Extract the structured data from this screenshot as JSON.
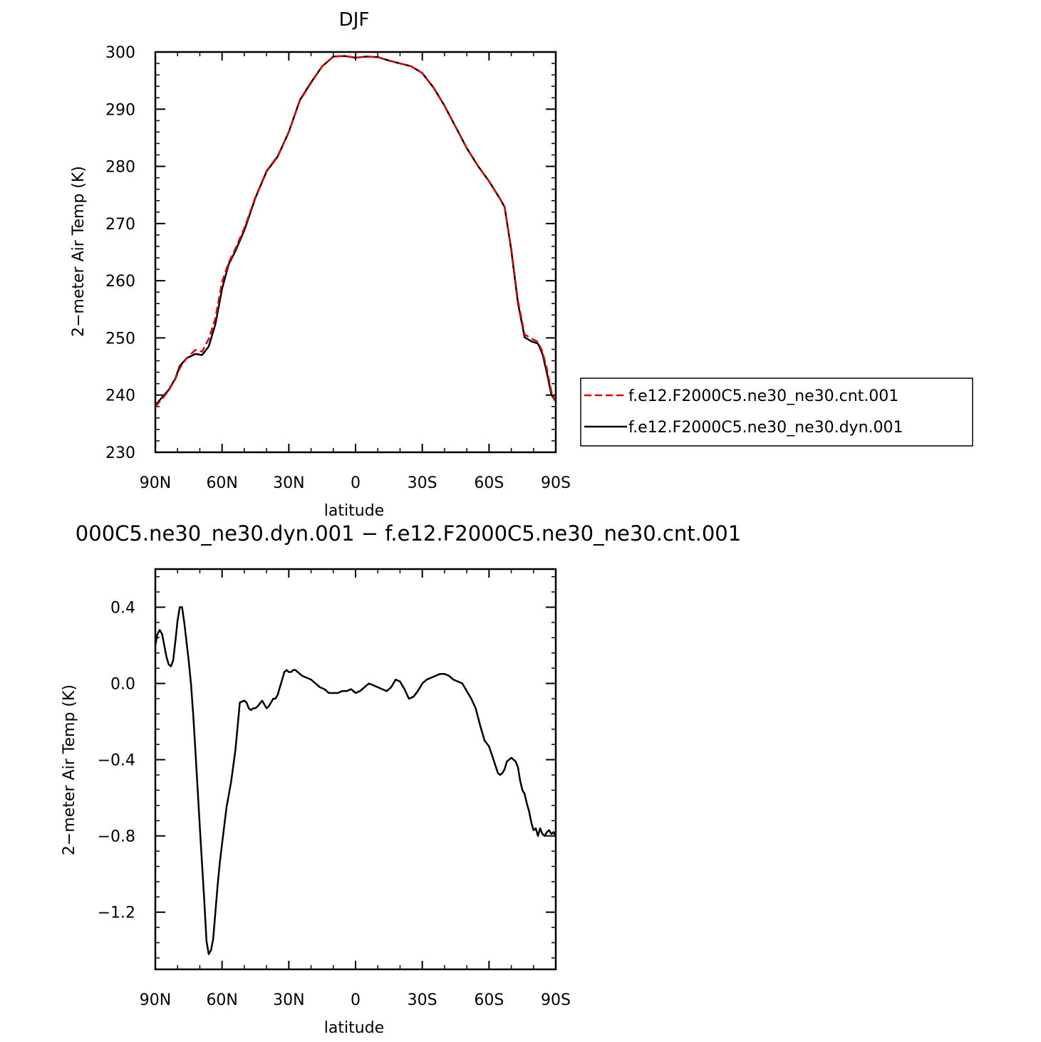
{
  "chart_data": [
    {
      "type": "line",
      "title": "DJF",
      "xlabel": "latitude",
      "ylabel": "2−meter Air Temp (K)",
      "xlim": [
        90,
        -90
      ],
      "ylim": [
        230,
        300
      ],
      "x_ticks": [
        90,
        60,
        30,
        0,
        -30,
        -60,
        -90
      ],
      "x_tick_labels": [
        "90N",
        "60N",
        "30N",
        "0",
        "30S",
        "60S",
        "90S"
      ],
      "y_ticks": [
        230,
        240,
        250,
        260,
        270,
        280,
        290,
        300
      ],
      "y_tick_labels": [
        "230",
        "240",
        "250",
        "260",
        "270",
        "280",
        "290",
        "300"
      ],
      "legend_position": "right",
      "series": [
        {
          "name": "f.e12.F2000C5.ne30_ne30.cnt.001",
          "color": "#e00000",
          "dash": "dashed",
          "x": [
            90,
            87,
            84,
            81,
            79,
            76,
            72,
            69,
            66,
            63,
            60,
            57,
            54,
            50,
            45,
            40,
            35,
            30,
            25,
            20,
            15,
            10,
            5,
            0,
            -5,
            -10,
            -15,
            -20,
            -25,
            -30,
            -35,
            -40,
            -45,
            -50,
            -55,
            -60,
            -65,
            -67,
            -70,
            -73,
            -76,
            -79,
            -82,
            -84,
            -86,
            -88,
            -90
          ],
          "y": [
            238.0,
            239.3,
            240.8,
            242.8,
            244.7,
            246.4,
            247.9,
            247.6,
            249.8,
            253.4,
            259.8,
            263.2,
            265.6,
            269.2,
            274.6,
            279.2,
            281.8,
            286.0,
            291.5,
            294.6,
            297.5,
            299.2,
            299.3,
            299.0,
            299.2,
            299.1,
            298.5,
            298.0,
            297.5,
            296.3,
            293.8,
            290.6,
            286.9,
            283.2,
            280.1,
            277.4,
            274.3,
            272.9,
            265.5,
            256.5,
            250.6,
            249.9,
            249.3,
            247.6,
            244.6,
            240.6,
            238.9
          ]
        },
        {
          "name": "f.e12.F2000C5.ne30_ne30.dyn.001",
          "color": "#000000",
          "dash": "solid",
          "x": [
            90,
            87,
            84,
            81,
            79,
            76,
            72,
            69,
            66,
            63,
            60,
            57,
            54,
            50,
            45,
            40,
            35,
            30,
            25,
            20,
            15,
            10,
            5,
            0,
            -5,
            -10,
            -15,
            -20,
            -25,
            -30,
            -35,
            -40,
            -45,
            -50,
            -55,
            -60,
            -65,
            -67,
            -70,
            -73,
            -76,
            -79,
            -82,
            -84,
            -86,
            -88,
            -90
          ],
          "y": [
            238.2,
            239.6,
            240.9,
            242.9,
            245.1,
            246.4,
            247.2,
            247.0,
            248.5,
            252.4,
            258.6,
            262.9,
            265.2,
            268.8,
            274.5,
            279.1,
            281.7,
            286.0,
            291.6,
            294.7,
            297.5,
            299.2,
            299.3,
            299.0,
            299.2,
            299.1,
            298.5,
            298.0,
            297.5,
            296.3,
            293.8,
            290.6,
            286.9,
            283.2,
            280.1,
            277.4,
            274.3,
            272.9,
            265.3,
            256.1,
            250.1,
            249.4,
            249.0,
            247.2,
            243.9,
            240.1,
            238.9
          ]
        }
      ]
    },
    {
      "type": "line",
      "title": "000C5.ne30_ne30.dyn.001 − f.e12.F2000C5.ne30_ne30.cnt.001",
      "xlabel": "latitude",
      "ylabel": "2−meter Air Temp (K)",
      "xlim": [
        90,
        -90
      ],
      "ylim": [
        -1.5,
        0.6
      ],
      "x_ticks": [
        90,
        60,
        30,
        0,
        -30,
        -60,
        -90
      ],
      "x_tick_labels": [
        "90N",
        "60N",
        "30N",
        "0",
        "30S",
        "60S",
        "90S"
      ],
      "y_ticks": [
        -1.2,
        -0.8,
        -0.4,
        0.0,
        0.4
      ],
      "y_tick_labels": [
        "−1.2",
        "−0.8",
        "−0.4",
        "0.0",
        "0.4"
      ],
      "series": [
        {
          "color": "#000000",
          "dash": "solid",
          "x": [
            90,
            89,
            88,
            87,
            86,
            85,
            84,
            83,
            82,
            81,
            80,
            79,
            78,
            77,
            76,
            75,
            74,
            73,
            72,
            71,
            70,
            69,
            68,
            67,
            66,
            65,
            64,
            63,
            62,
            61,
            60,
            58,
            56,
            54,
            52,
            50,
            49,
            48,
            47,
            46,
            45,
            44,
            42,
            40,
            39,
            38,
            37,
            36,
            35,
            34,
            33,
            32,
            31,
            30,
            29,
            28,
            27,
            26,
            25,
            24,
            22,
            20,
            18,
            16,
            14,
            12,
            10,
            8,
            6,
            4,
            2,
            0,
            -2,
            -4,
            -6,
            -8,
            -10,
            -12,
            -14,
            -16,
            -18,
            -20,
            -22,
            -24,
            -26,
            -28,
            -30,
            -32,
            -34,
            -36,
            -38,
            -40,
            -42,
            -44,
            -46,
            -48,
            -50,
            -52,
            -54,
            -56,
            -58,
            -60,
            -62,
            -64,
            -65,
            -66,
            -67,
            -68,
            -70,
            -71,
            -72,
            -73,
            -74,
            -75,
            -76,
            -77,
            -78,
            -79,
            -80,
            -81,
            -82,
            -83,
            -84,
            -85,
            -86,
            -87,
            -88,
            -89,
            -90
          ],
          "y": [
            0.2,
            0.26,
            0.28,
            0.26,
            0.2,
            0.14,
            0.1,
            0.09,
            0.12,
            0.22,
            0.33,
            0.4,
            0.4,
            0.32,
            0.22,
            0.12,
            0.0,
            -0.16,
            -0.35,
            -0.55,
            -0.75,
            -0.95,
            -1.14,
            -1.35,
            -1.42,
            -1.4,
            -1.34,
            -1.2,
            -1.06,
            -0.94,
            -0.84,
            -0.65,
            -0.52,
            -0.35,
            -0.1,
            -0.09,
            -0.1,
            -0.13,
            -0.14,
            -0.13,
            -0.13,
            -0.12,
            -0.09,
            -0.13,
            -0.12,
            -0.1,
            -0.08,
            -0.08,
            -0.06,
            -0.02,
            0.02,
            0.06,
            0.07,
            0.06,
            0.06,
            0.07,
            0.07,
            0.06,
            0.05,
            0.04,
            0.03,
            0.02,
            0.0,
            -0.02,
            -0.03,
            -0.05,
            -0.05,
            -0.05,
            -0.04,
            -0.04,
            -0.03,
            -0.05,
            -0.04,
            -0.02,
            0.0,
            -0.01,
            -0.02,
            -0.03,
            -0.04,
            -0.02,
            0.02,
            0.01,
            -0.03,
            -0.08,
            -0.07,
            -0.04,
            0.0,
            0.02,
            0.03,
            0.04,
            0.05,
            0.05,
            0.04,
            0.02,
            0.01,
            0.0,
            -0.04,
            -0.08,
            -0.13,
            -0.22,
            -0.3,
            -0.33,
            -0.4,
            -0.47,
            -0.48,
            -0.47,
            -0.45,
            -0.41,
            -0.39,
            -0.4,
            -0.41,
            -0.44,
            -0.51,
            -0.56,
            -0.58,
            -0.63,
            -0.67,
            -0.73,
            -0.77,
            -0.76,
            -0.8,
            -0.76,
            -0.79,
            -0.8,
            -0.78,
            -0.77,
            -0.79,
            -0.78,
            -0.8
          ]
        }
      ]
    }
  ]
}
